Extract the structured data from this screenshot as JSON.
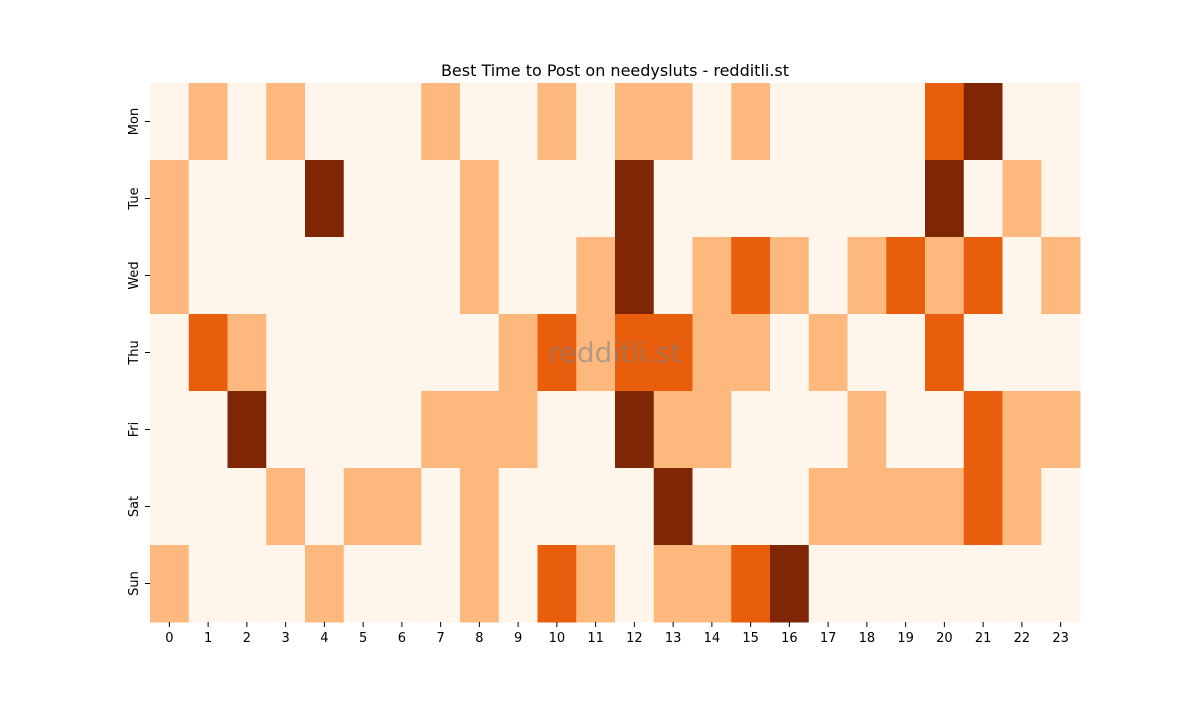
{
  "chart_data": {
    "type": "heatmap",
    "title": "Best Time to Post on needysluts - redditli.st",
    "xlabel": "",
    "ylabel": "",
    "x_categories": [
      "0",
      "1",
      "2",
      "3",
      "4",
      "5",
      "6",
      "7",
      "8",
      "9",
      "10",
      "11",
      "12",
      "13",
      "14",
      "15",
      "16",
      "17",
      "18",
      "19",
      "20",
      "21",
      "22",
      "23"
    ],
    "y_categories": [
      "Mon",
      "Tue",
      "Wed",
      "Thu",
      "Fri",
      "Sat",
      "Sun"
    ],
    "colormap": "Oranges",
    "level_colors": [
      "#fff5eb",
      "#fdb97d",
      "#e95e0d",
      "#7f2704"
    ],
    "values": [
      [
        0,
        1,
        0,
        1,
        0,
        0,
        0,
        1,
        0,
        0,
        1,
        0,
        1,
        1,
        0,
        1,
        0,
        0,
        0,
        0,
        2,
        3,
        0,
        0
      ],
      [
        1,
        0,
        0,
        0,
        3,
        0,
        0,
        0,
        1,
        0,
        0,
        0,
        3,
        0,
        0,
        0,
        0,
        0,
        0,
        0,
        3,
        0,
        1,
        0
      ],
      [
        1,
        0,
        0,
        0,
        0,
        0,
        0,
        0,
        1,
        0,
        0,
        1,
        3,
        0,
        1,
        2,
        1,
        0,
        1,
        2,
        1,
        2,
        0,
        1
      ],
      [
        0,
        2,
        1,
        0,
        0,
        0,
        0,
        0,
        0,
        1,
        2,
        1,
        2,
        2,
        1,
        1,
        0,
        1,
        0,
        0,
        2,
        0,
        0,
        0
      ],
      [
        0,
        0,
        3,
        0,
        0,
        0,
        0,
        1,
        1,
        1,
        0,
        0,
        3,
        1,
        1,
        0,
        0,
        0,
        1,
        0,
        0,
        2,
        1,
        1
      ],
      [
        0,
        0,
        0,
        1,
        0,
        1,
        1,
        0,
        1,
        0,
        0,
        0,
        0,
        3,
        0,
        0,
        0,
        1,
        1,
        1,
        1,
        2,
        1,
        0
      ],
      [
        1,
        0,
        0,
        0,
        1,
        0,
        0,
        0,
        1,
        0,
        2,
        1,
        0,
        1,
        1,
        2,
        3,
        0,
        0,
        0,
        0,
        0,
        0,
        0
      ]
    ],
    "colorbar": false,
    "grid": false
  },
  "watermark": "redditli.st"
}
